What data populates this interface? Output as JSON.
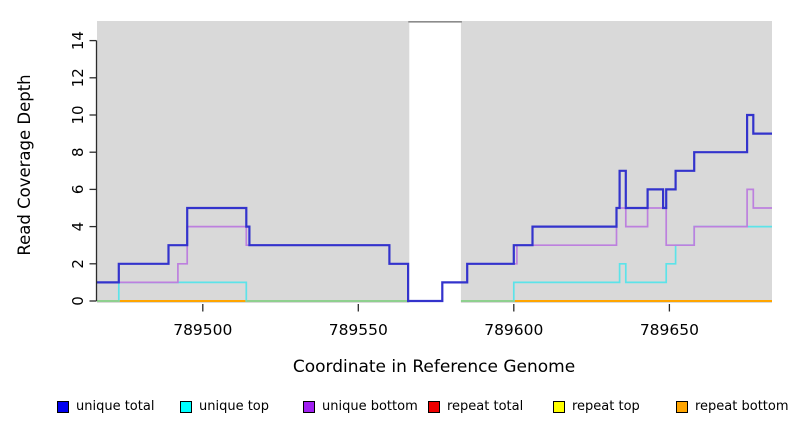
{
  "chart_data": {
    "type": "line",
    "subtype": "step-coverage-plot",
    "title": "",
    "xlabel": "Coordinate in Reference Genome",
    "ylabel": "Read Coverage Depth",
    "xlim": [
      789466,
      789683
    ],
    "ylim": [
      0,
      15
    ],
    "x_ticks": [
      789500,
      789550,
      789600,
      789650
    ],
    "y_ticks": [
      0,
      2,
      4,
      6,
      8,
      10,
      12,
      14
    ],
    "grid": false,
    "plot_bg_color": "#d9d9d9",
    "axis_color": "#2b2b2b",
    "gap_region": {
      "x1": 789566.4,
      "x2": 789583,
      "fill": "#ffffff",
      "top_border_color": "#8c8c8c"
    },
    "series": [
      {
        "name": "repeat total",
        "color": "#ee0000",
        "width": 2,
        "layer": 0,
        "steps": [
          [
            789466,
            0
          ]
        ]
      },
      {
        "name": "repeat top",
        "color": "#ffff00",
        "width": 2,
        "layer": 0,
        "steps": [
          [
            789466,
            0
          ]
        ]
      },
      {
        "name": "repeat bottom",
        "color": "#ffa500",
        "width": 2,
        "layer": 0,
        "steps": [
          [
            789466,
            0
          ]
        ]
      },
      {
        "name": "unique top",
        "color": "#5ce3e9",
        "zero_overlap_color": "#8fd08f",
        "width": 1.7,
        "layer": 0,
        "steps": [
          [
            789466,
            0
          ],
          [
            789473,
            1
          ],
          [
            789514,
            0
          ],
          [
            789600,
            1
          ],
          [
            789634,
            2
          ],
          [
            789636,
            1
          ],
          [
            789649,
            2
          ],
          [
            789652,
            3
          ],
          [
            789658,
            4
          ]
        ]
      },
      {
        "name": "unique bottom",
        "color": "#bd80de",
        "width": 1.7,
        "layer": 1,
        "steps": [
          [
            789466,
            1
          ],
          [
            789492,
            2
          ],
          [
            789495,
            4
          ],
          [
            789514,
            3
          ],
          [
            789560,
            2
          ],
          [
            789566,
            0
          ],
          [
            789577,
            1
          ],
          [
            789585,
            2
          ],
          [
            789601,
            3
          ],
          [
            789633,
            5
          ],
          [
            789636,
            4
          ],
          [
            789643,
            5
          ],
          [
            789649,
            3
          ],
          [
            789658,
            4
          ],
          [
            789675,
            6
          ],
          [
            789677,
            5
          ]
        ]
      },
      {
        "name": "unique total",
        "color": "#3333cc",
        "width": 2.2,
        "layer": 1,
        "steps": [
          [
            789466,
            1
          ],
          [
            789473,
            2
          ],
          [
            789489,
            3
          ],
          [
            789495,
            5
          ],
          [
            789514,
            4
          ],
          [
            789515,
            3
          ],
          [
            789560,
            2
          ],
          [
            789566,
            0
          ],
          [
            789577,
            1
          ],
          [
            789585,
            2
          ],
          [
            789600,
            3
          ],
          [
            789606,
            4
          ],
          [
            789633,
            5
          ],
          [
            789634,
            7
          ],
          [
            789636,
            5
          ],
          [
            789643,
            6
          ],
          [
            789648,
            5
          ],
          [
            789649,
            6
          ],
          [
            789652,
            7
          ],
          [
            789658,
            8
          ],
          [
            789675,
            10
          ],
          [
            789677,
            9
          ]
        ]
      }
    ],
    "legend": {
      "position": "bottom",
      "items": [
        {
          "label": "unique total",
          "swatch_color": "#0000ee",
          "x": 57
        },
        {
          "label": "unique top",
          "swatch_color": "#00ffff",
          "x": 180
        },
        {
          "label": "unique bottom",
          "swatch_color": "#a020f0",
          "x": 303
        },
        {
          "label": "repeat total",
          "swatch_color": "#ee0000",
          "x": 428
        },
        {
          "label": "repeat top",
          "swatch_color": "#ffff00",
          "x": 553
        },
        {
          "label": "repeat bottom",
          "swatch_color": "#ffa500",
          "x": 676
        }
      ]
    }
  }
}
